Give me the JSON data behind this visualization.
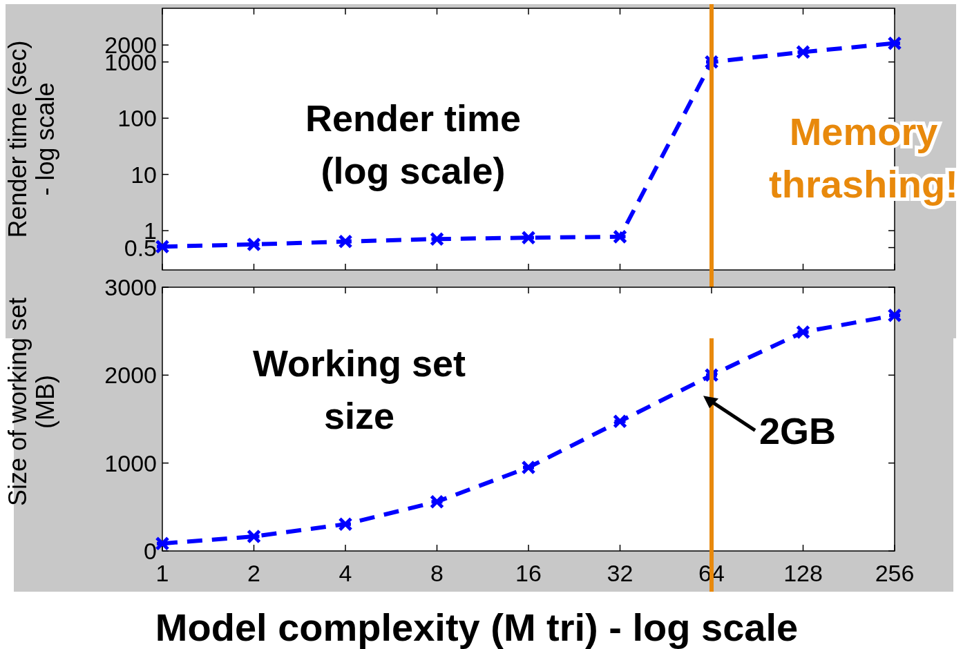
{
  "chart_data": [
    {
      "type": "line",
      "ylabel": "Render time (sec)\n- log scale",
      "log": "xy",
      "xlim": [
        1,
        256
      ],
      "xticks": [
        1,
        2,
        4,
        8,
        16,
        32,
        64,
        128,
        256
      ],
      "ylim": [
        0.2,
        9000
      ],
      "yticks": [
        0.5,
        1,
        10,
        100,
        1000,
        2000
      ],
      "tick_labels": "y",
      "marker": "cross",
      "line_style": "dashed",
      "x": [
        1,
        2,
        4,
        8,
        16,
        32,
        64,
        128,
        256
      ],
      "series": [
        {
          "color": "#0000ff",
          "values": [
            0.52,
            0.57,
            0.64,
            0.71,
            0.75,
            0.78,
            1000,
            1500,
            2150
          ]
        }
      ],
      "ref_lines": [
        {
          "axis": "x",
          "value": 64,
          "label": "Memory thrashing!",
          "color": "#e8890c"
        }
      ],
      "annotations": [
        "Render time\n(log scale)"
      ]
    },
    {
      "type": "line",
      "xlabel": "Model complexity (M tri) - log scale",
      "ylabel": "Size of working set\n(MB)",
      "log": "x",
      "xlim": [
        1,
        256
      ],
      "xticks": [
        1,
        2,
        4,
        8,
        16,
        32,
        64,
        128,
        256
      ],
      "ylim": [
        0,
        3000
      ],
      "yticks": [
        0,
        1000,
        2000,
        3000
      ],
      "marker": "cross",
      "line_style": "dashed",
      "x": [
        1,
        2,
        4,
        8,
        16,
        32,
        64,
        128,
        256
      ],
      "series": [
        {
          "color": "#0000ff",
          "values": [
            85,
            165,
            305,
            560,
            950,
            1475,
            2000,
            2490,
            2680
          ]
        }
      ],
      "ref_lines": [
        {
          "axis": "x",
          "value": 64,
          "color": "#e8890c"
        }
      ],
      "annotations": [
        "Working set\nsize",
        {
          "text": "2GB",
          "x": 64,
          "y": 2000
        }
      ]
    }
  ]
}
